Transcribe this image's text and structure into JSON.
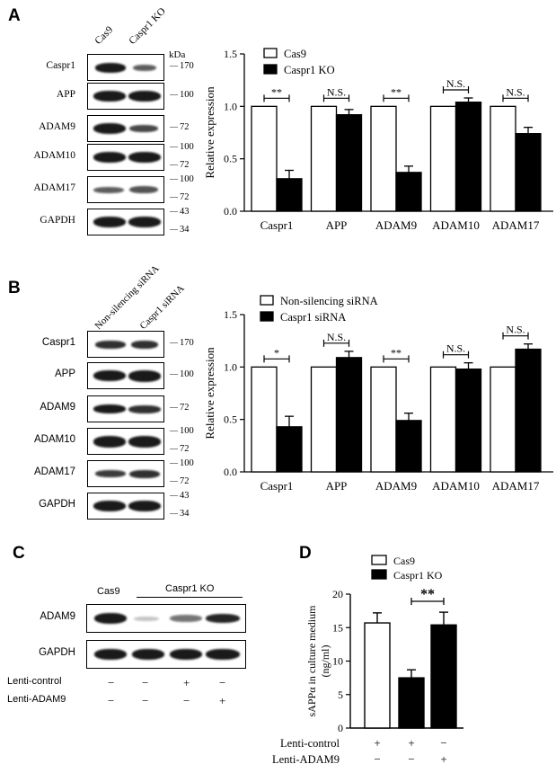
{
  "panels": {
    "A": {
      "letter": "A",
      "lanes": [
        "Cas9",
        "Caspr1 KO"
      ],
      "kda": "kDa",
      "rows": [
        {
          "label": "Caspr1",
          "marker": "170"
        },
        {
          "label": "APP",
          "marker": "100"
        },
        {
          "label": "ADAM9",
          "marker": "72"
        },
        {
          "label": "ADAM10",
          "marker": "100",
          "marker2": "72"
        },
        {
          "label": "ADAM17",
          "marker": "100",
          "marker2": "72"
        },
        {
          "label": "GAPDH",
          "marker": "43",
          "marker2": "34"
        }
      ]
    },
    "B": {
      "letter": "B",
      "lanes": [
        "Non-silencing siRNA",
        "Caspr1 siRNA"
      ],
      "rows": [
        {
          "label": "Caspr1",
          "marker": "170"
        },
        {
          "label": "APP",
          "marker": "100"
        },
        {
          "label": "ADAM9",
          "marker": "72"
        },
        {
          "label": "ADAM10",
          "marker": "100",
          "marker2": "72"
        },
        {
          "label": "ADAM17",
          "marker": "100",
          "marker2": "72"
        },
        {
          "label": "GAPDH",
          "marker": "43",
          "marker2": "34"
        }
      ]
    },
    "C": {
      "letter": "C",
      "lane_header_1": "Cas9",
      "lane_header_2": "Caspr1 KO",
      "rows": [
        {
          "label": "ADAM9"
        },
        {
          "label": "GAPDH"
        }
      ],
      "treatments": [
        {
          "label": "Lenti-control",
          "values": [
            "−",
            "−",
            "+",
            "−"
          ]
        },
        {
          "label": "Lenti-ADAM9",
          "values": [
            "−",
            "−",
            "−",
            "+"
          ]
        }
      ]
    },
    "D": {
      "letter": "D",
      "treatments": [
        {
          "label": "Lenti-control",
          "values": [
            "+",
            "+",
            "−"
          ]
        },
        {
          "label": "Lenti-ADAM9",
          "values": [
            "−",
            "−",
            "+"
          ]
        }
      ]
    }
  },
  "chart_data": [
    {
      "id": "A",
      "type": "bar",
      "ylabel": "Relative  expression",
      "ylim": [
        0,
        1.5
      ],
      "yticks": [
        "0.0",
        "0.5",
        "1.0",
        "1.5"
      ],
      "categories": [
        "Caspr1",
        "APP",
        "ADAM9",
        "ADAM10",
        "ADAM17"
      ],
      "series": [
        {
          "name": "Cas9",
          "color": "#ffffff",
          "values": [
            1.0,
            1.0,
            1.0,
            1.0,
            1.0
          ],
          "errors": [
            0,
            0,
            0,
            0,
            0
          ]
        },
        {
          "name": "Caspr1 KO",
          "color": "#000000",
          "values": [
            0.31,
            0.92,
            0.37,
            1.04,
            0.74
          ],
          "errors": [
            0.08,
            0.05,
            0.06,
            0.04,
            0.06
          ]
        }
      ],
      "significance": [
        "**",
        "N.S.",
        "**",
        "N.S.",
        "N.S."
      ],
      "legend_position": "top-left"
    },
    {
      "id": "B",
      "type": "bar",
      "ylabel": "Relative  expression",
      "ylim": [
        0,
        1.5
      ],
      "yticks": [
        "0.0",
        "0.5",
        "1.0",
        "1.5"
      ],
      "categories": [
        "Caspr1",
        "APP",
        "ADAM9",
        "ADAM10",
        "ADAM17"
      ],
      "series": [
        {
          "name": "Non-silencing siRNA",
          "color": "#ffffff",
          "values": [
            1.0,
            1.0,
            1.0,
            1.0,
            1.0
          ],
          "errors": [
            0,
            0,
            0,
            0,
            0
          ]
        },
        {
          "name": "Caspr1 siRNA",
          "color": "#000000",
          "values": [
            0.43,
            1.09,
            0.49,
            0.98,
            1.17
          ],
          "errors": [
            0.1,
            0.06,
            0.07,
            0.06,
            0.05
          ]
        }
      ],
      "significance": [
        "*",
        "N.S.",
        "**",
        "N.S.",
        "N.S."
      ],
      "legend_position": "top-left"
    },
    {
      "id": "D",
      "type": "bar",
      "ylabel": "sAPPα in culture  medium (ng/ml)",
      "ylim": [
        0,
        20
      ],
      "yticks": [
        "0",
        "5",
        "10",
        "15",
        "20"
      ],
      "bars": [
        {
          "series": "Cas9",
          "color": "#ffffff",
          "value": 15.7,
          "error": 1.5
        },
        {
          "series": "Caspr1 KO",
          "color": "#000000",
          "value": 7.5,
          "error": 1.2
        },
        {
          "series": "Caspr1 KO",
          "color": "#000000",
          "value": 15.4,
          "error": 1.9
        }
      ],
      "legend": [
        "Cas9",
        "Caspr1 KO"
      ],
      "significance": [
        {
          "between": [
            1,
            2
          ],
          "label": "**"
        }
      ],
      "legend_position": "top-left"
    }
  ]
}
